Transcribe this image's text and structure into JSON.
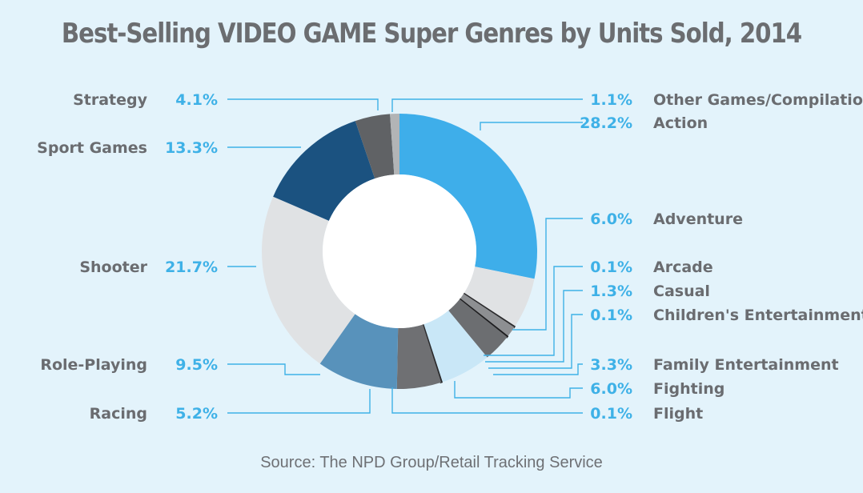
{
  "title": "Best-Selling VIDEO GAME Super Genres by Units Sold, 2014",
  "source": "Source: The NPD Group/Retail Tracking Service",
  "chart_data": {
    "type": "pie",
    "donut": true,
    "title": "Best-Selling VIDEO GAME Super Genres by Units Sold, 2014",
    "unit": "%",
    "slices": [
      {
        "name": "Action",
        "value": 28.2,
        "label": "28.2%",
        "color": "#3eaeea",
        "side": "right"
      },
      {
        "name": "Adventure",
        "value": 6.0,
        "label": "6.0%",
        "color": "#e0e2e4",
        "side": "right"
      },
      {
        "name": "Arcade",
        "value": 0.1,
        "label": "0.1%",
        "color": "#2a2a2c",
        "side": "right"
      },
      {
        "name": "Casual",
        "value": 1.3,
        "label": "1.3%",
        "color": "#8d8f92",
        "side": "right"
      },
      {
        "name": "Children's Entertainment",
        "value": 0.1,
        "label": "0.1%",
        "color": "#1c1c1e",
        "side": "right"
      },
      {
        "name": "Family Entertainment",
        "value": 3.3,
        "label": "3.3%",
        "color": "#6c6e71",
        "side": "right"
      },
      {
        "name": "Fighting",
        "value": 6.0,
        "label": "6.0%",
        "color": "#c9e7f7",
        "side": "right"
      },
      {
        "name": "Flight",
        "value": 0.1,
        "label": "0.1%",
        "color": "#2a2a2c",
        "side": "right"
      },
      {
        "name": "Racing",
        "value": 5.2,
        "label": "5.2%",
        "color": "#6f7073",
        "side": "left"
      },
      {
        "name": "Role-Playing",
        "value": 9.5,
        "label": "9.5%",
        "color": "#5892bb",
        "side": "left"
      },
      {
        "name": "Shooter",
        "value": 21.7,
        "label": "21.7%",
        "color": "#e0e2e4",
        "side": "left"
      },
      {
        "name": "Sport Games",
        "value": 13.3,
        "label": "13.3%",
        "color": "#1b5280",
        "side": "left"
      },
      {
        "name": "Strategy",
        "value": 4.1,
        "label": "4.1%",
        "color": "#606265",
        "side": "left"
      },
      {
        "name": "Other Games/Compilations",
        "value": 1.1,
        "label": "1.1%",
        "color": "#b2b4b6",
        "side": "right"
      }
    ],
    "wedge_colors": [
      "#3eaeea",
      "#e0e2e4",
      "#2a2a2c",
      "#8d8f92",
      "#1c1c1e",
      "#6c6e71",
      "#c9e7f7",
      "#2a2a2c",
      "#6f7073",
      "#5892bb",
      "#e0e2e4",
      "#1b5280",
      "#606265",
      "#b2b4b6",
      "#3a3a3c"
    ],
    "wedge_values": [
      28.2,
      6.0,
      0.1,
      1.3,
      0.1,
      3.3,
      6.0,
      0.1,
      5.2,
      9.5,
      21.7,
      13.3,
      4.1,
      1.1
    ]
  },
  "colors": {
    "background": "#e3f3fb",
    "accent": "#3eb1e7",
    "label_text": "#6a6c70"
  }
}
